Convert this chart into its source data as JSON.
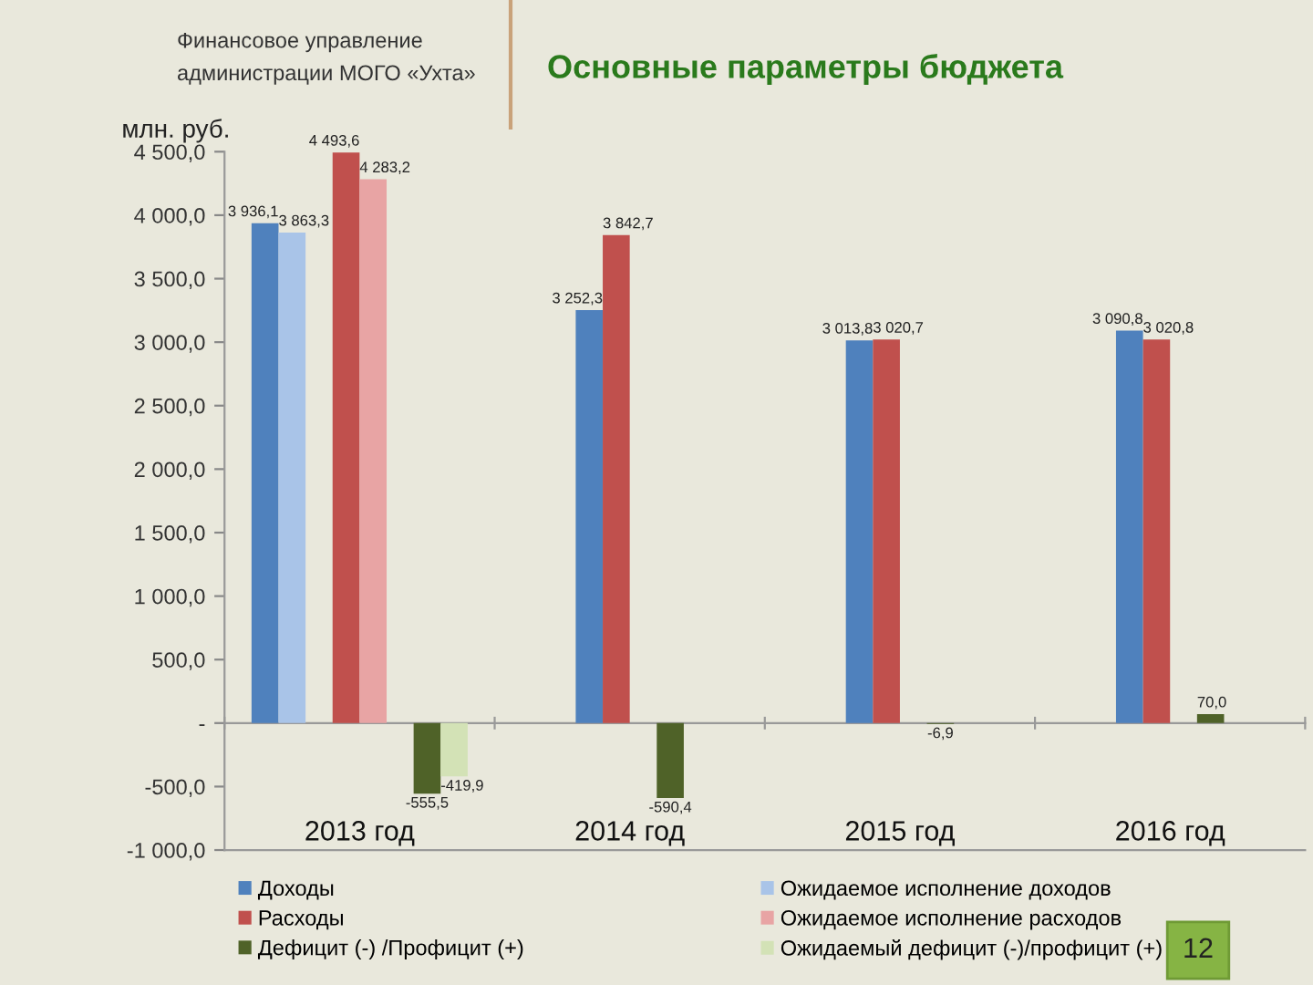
{
  "chart_data": {
    "type": "bar",
    "title": "Основные параметры бюджета",
    "ylabel": "млн. руб.",
    "categories": [
      "2013 год",
      "2014 год",
      "2015 год",
      "2016 год"
    ],
    "series": [
      {
        "name": "Доходы",
        "color": "#4f81bd",
        "values": [
          3936.1,
          3252.3,
          3013.8,
          3090.8
        ],
        "value_labels": [
          "3 936,1",
          "3 252,3",
          "3 013,8",
          "3 090,8"
        ]
      },
      {
        "name": "Ожидаемое исполнение доходов",
        "color": "#a9c4e8",
        "values": [
          3863.3,
          null,
          null,
          null
        ],
        "value_labels": [
          "3 863,3",
          null,
          null,
          null
        ]
      },
      {
        "name": "Расходы",
        "color": "#c0504d",
        "values": [
          4493.6,
          3842.7,
          3020.7,
          3020.8
        ],
        "value_labels": [
          "4 493,6",
          "3 842,7",
          "3 020,7",
          "3 020,8"
        ]
      },
      {
        "name": "Ожидаемое исполнение расходов",
        "color": "#e8a4a4",
        "values": [
          4283.2,
          null,
          null,
          null
        ],
        "value_labels": [
          "4 283,2",
          null,
          null,
          null
        ]
      },
      {
        "name": "Дефицит (-) /Профицит (+)",
        "color": "#4f6228",
        "values": [
          -555.5,
          -590.4,
          -6.9,
          70.0
        ],
        "value_labels": [
          "-555,5",
          "-590,4",
          "-6,9",
          "70,0"
        ]
      },
      {
        "name": "Ожидаемый дефицит (-)/профицит (+)",
        "color": "#d3e2b6",
        "values": [
          -419.9,
          null,
          null,
          null
        ],
        "value_labels": [
          "-419,9",
          null,
          null,
          null
        ]
      }
    ],
    "ylim": [
      -1000,
      4500
    ],
    "yticks": [
      {
        "value": -1000,
        "label": "-1 000,0"
      },
      {
        "value": -500,
        "label": "-500,0"
      },
      {
        "value": 0,
        "label": "-"
      },
      {
        "value": 500,
        "label": "500,0"
      },
      {
        "value": 1000,
        "label": "1 000,0"
      },
      {
        "value": 1500,
        "label": "1 500,0"
      },
      {
        "value": 2000,
        "label": "2 000,0"
      },
      {
        "value": 2500,
        "label": "2 500,0"
      },
      {
        "value": 3000,
        "label": "3 000,0"
      },
      {
        "value": 3500,
        "label": "3 500,0"
      },
      {
        "value": 4000,
        "label": "4 000,0"
      },
      {
        "value": 4500,
        "label": "4 500,0"
      }
    ],
    "legend": "bottom",
    "annotations": [
      "Финансовое управление\nадминистрации МОГО «Ухта»",
      "12"
    ]
  }
}
